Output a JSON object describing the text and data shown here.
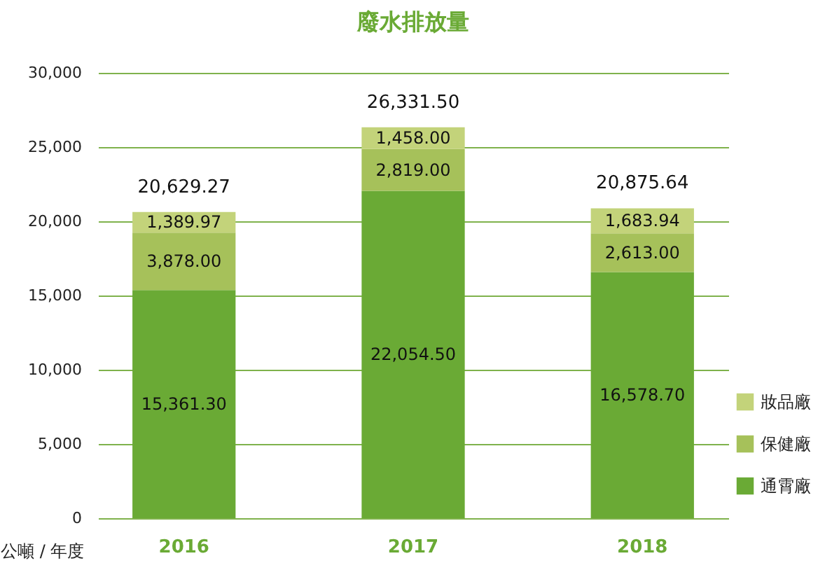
{
  "chart_data": {
    "type": "bar",
    "title": "廢水排放量",
    "ylabel": "公噸 / 年度",
    "categories": [
      "2016",
      "2017",
      "2018"
    ],
    "stacked": true,
    "series": [
      {
        "name": "通霄廠",
        "color": "#6aaa35",
        "values": [
          15361.3,
          22054.5,
          16578.7
        ]
      },
      {
        "name": "保健廠",
        "color": "#a6c15a",
        "values": [
          3878.0,
          2819.0,
          2613.0
        ]
      },
      {
        "name": "妝品廠",
        "color": "#c3d37a",
        "values": [
          1389.97,
          1458.0,
          1683.94
        ]
      }
    ],
    "value_labels": [
      [
        "15,361.30",
        "22,054.50",
        "16,578.70"
      ],
      [
        "3,878.00",
        "2,819.00",
        "2,613.00"
      ],
      [
        "1,389.97",
        "1,458.00",
        "1,683.94"
      ]
    ],
    "totals": [
      "20,629.27",
      "26,331.50",
      "20,875.64"
    ],
    "ylim": [
      0,
      30000
    ],
    "yticks": [
      0,
      {
        "value": 5000,
        "label": "5,000"
      },
      {
        "value": 10000,
        "label": "10,000"
      },
      {
        "value": 15000,
        "label": "15,000"
      },
      {
        "value": 20000,
        "label": "20,000"
      },
      {
        "value": 25000,
        "label": "25,000"
      },
      {
        "value": 30000,
        "label": "30,000"
      }
    ],
    "grid": "y",
    "legend": "bottom right"
  }
}
